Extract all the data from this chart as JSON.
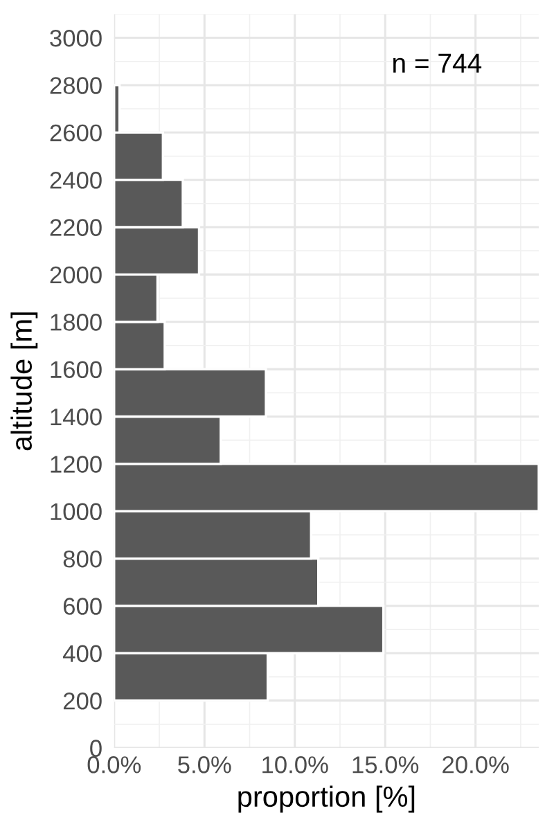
{
  "chart_data": {
    "type": "histogram",
    "orientation": "horizontal",
    "xlabel": "proportion [%]",
    "ylabel": "altitude [m]",
    "annotations": [
      "n = 744"
    ],
    "bins": [
      200,
      400,
      600,
      800,
      1000,
      1200,
      1400,
      1600,
      1800,
      2000,
      2200,
      2400,
      2600,
      2800
    ],
    "values": [
      8.5,
      14.9,
      11.3,
      10.9,
      23.5,
      5.9,
      8.4,
      2.8,
      2.4,
      4.7,
      3.8,
      2.7,
      0.3
    ],
    "color": "#595959",
    "xlim": [
      0,
      23.5
    ],
    "xticks": [
      {
        "value": 0,
        "label": "0.0%"
      },
      {
        "value": 5,
        "label": "5.0%"
      },
      {
        "value": 10,
        "label": "10.0%"
      },
      {
        "value": 15,
        "label": "15.0%"
      },
      {
        "value": 20,
        "label": "20.0%"
      }
    ],
    "ylim": [
      0,
      3100
    ],
    "yticks": [
      0,
      200,
      400,
      600,
      800,
      1000,
      1200,
      1400,
      1600,
      1800,
      2000,
      2200,
      2400,
      2600,
      2800,
      3000
    ],
    "grid": true
  }
}
